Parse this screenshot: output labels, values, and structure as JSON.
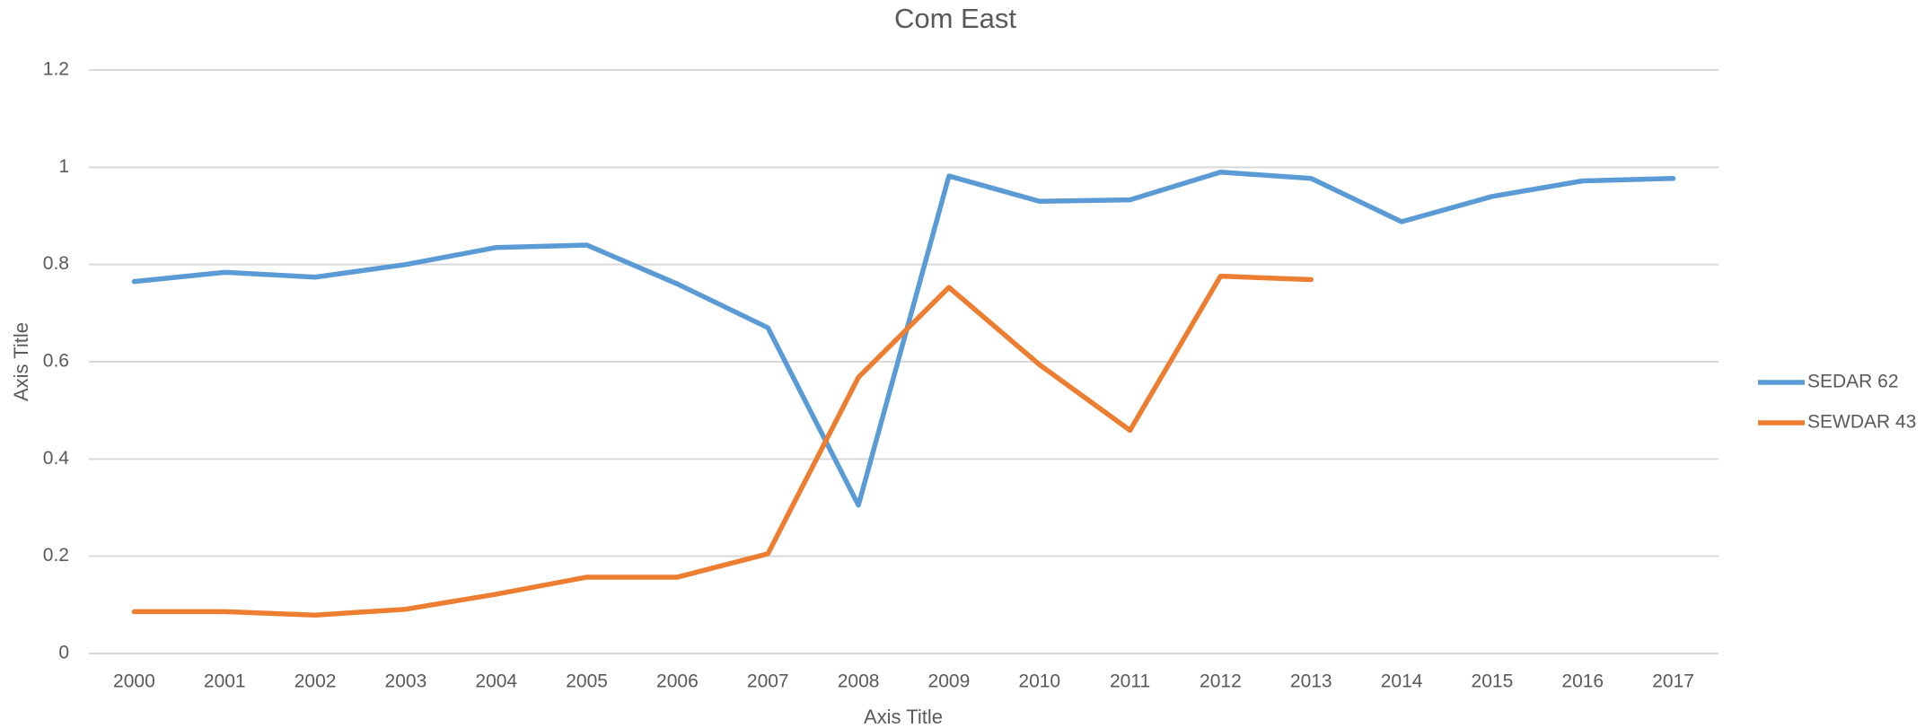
{
  "chart_data": {
    "type": "line",
    "title": "Com East",
    "x_label": "Axis Title",
    "y_label": "Axis Title",
    "categories": [
      "2000",
      "2001",
      "2002",
      "2003",
      "2004",
      "2005",
      "2006",
      "2007",
      "2008",
      "2009",
      "2010",
      "2011",
      "2012",
      "2013",
      "2014",
      "2015",
      "2016",
      "2017"
    ],
    "series": [
      {
        "name": "SEDAR 62",
        "color": "#5b9bd5",
        "values": [
          0.765,
          0.784,
          0.774,
          0.8,
          0.835,
          0.84,
          0.76,
          0.67,
          0.305,
          0.982,
          0.93,
          0.933,
          0.99,
          0.977,
          0.888,
          0.94,
          0.972,
          0.977
        ]
      },
      {
        "name": "SEWDAR 43",
        "color": "#ed7d31",
        "values": [
          0.086,
          0.086,
          0.079,
          0.091,
          0.122,
          0.157,
          0.157,
          0.205,
          0.568,
          0.753,
          0.594,
          0.459,
          0.776,
          0.769,
          null,
          null,
          null,
          null
        ]
      }
    ],
    "ylim": [
      0,
      1.2
    ],
    "yticks": [
      0,
      0.2,
      0.4,
      0.6,
      0.8,
      1,
      1.2
    ],
    "grid": true,
    "legend": "right"
  }
}
